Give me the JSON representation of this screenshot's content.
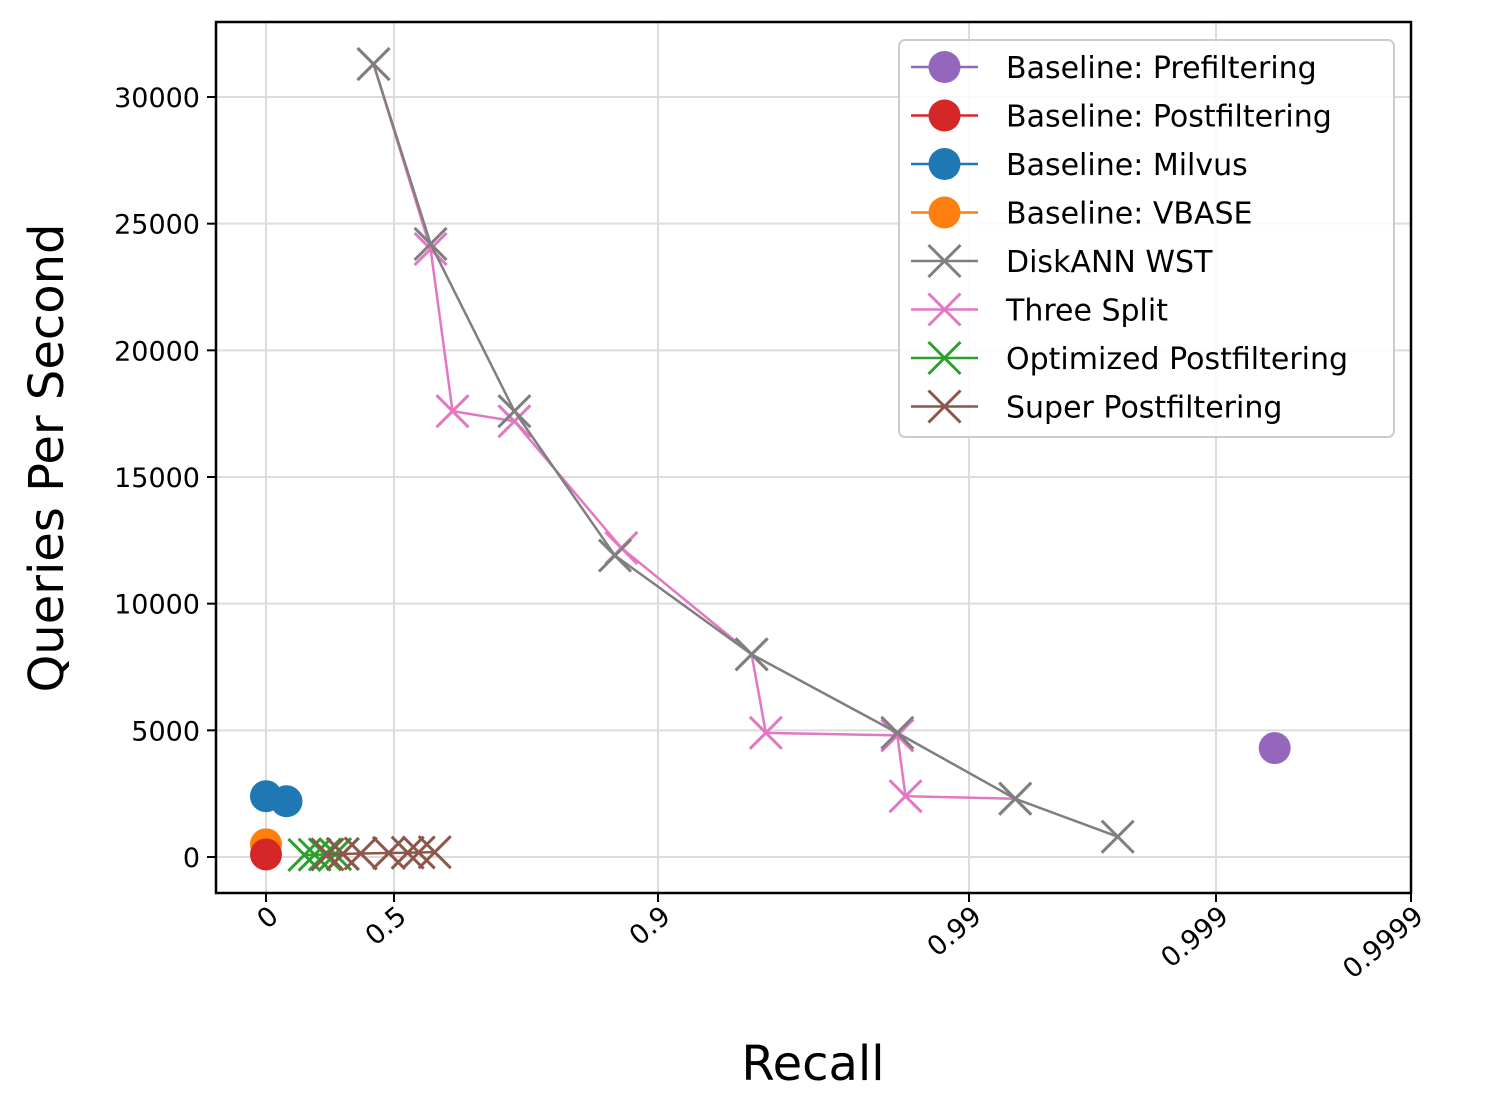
{
  "chart_data": {
    "type": "line",
    "title": "",
    "xlabel": "Recall",
    "ylabel": "Queries Per Second",
    "x_scale": "logit-style (1 - recall, log spaced)",
    "x_ticks": [
      "0",
      "0.5",
      "0.9",
      "0.99",
      "0.999",
      "0.9999"
    ],
    "y_ticks": [
      "0",
      "5000",
      "10000",
      "15000",
      "20000",
      "25000",
      "30000"
    ],
    "ylim": [
      -1500,
      33000
    ],
    "grid": true,
    "legend_position": "top-right",
    "series": [
      {
        "name": "Baseline: Prefiltering",
        "color": "#9467bd",
        "marker": "circle",
        "points": [
          {
            "x": 0.9995,
            "y": 4300
          }
        ]
      },
      {
        "name": "Baseline: Postfiltering",
        "color": "#d62728",
        "marker": "circle",
        "points": [
          {
            "x": 0.0,
            "y": 100
          }
        ]
      },
      {
        "name": "Baseline: Milvus",
        "color": "#1f77b4",
        "marker": "circle",
        "points": [
          {
            "x": 0.0,
            "y": 2400
          },
          {
            "x": 0.08,
            "y": 2200
          }
        ]
      },
      {
        "name": "Baseline: VBASE",
        "color": "#ff7f0e",
        "marker": "circle",
        "points": [
          {
            "x": 0.0,
            "y": 500
          }
        ]
      },
      {
        "name": "DiskANN WST",
        "color": "#7f7f7f",
        "marker": "x",
        "points": [
          {
            "x": 0.42,
            "y": 31300
          },
          {
            "x": 0.6,
            "y": 24200
          },
          {
            "x": 0.76,
            "y": 17600
          },
          {
            "x": 0.87,
            "y": 11900
          },
          {
            "x": 0.95,
            "y": 8000
          },
          {
            "x": 0.983,
            "y": 4900
          },
          {
            "x": 0.9935,
            "y": 2300
          },
          {
            "x": 0.9975,
            "y": 800
          }
        ]
      },
      {
        "name": "Three Split",
        "color": "#e377c2",
        "marker": "x",
        "points": [
          {
            "x": 0.42,
            "y": 31300
          },
          {
            "x": 0.6,
            "y": 24000
          },
          {
            "x": 0.65,
            "y": 17600
          },
          {
            "x": 0.76,
            "y": 17200
          },
          {
            "x": 0.875,
            "y": 12200
          },
          {
            "x": 0.95,
            "y": 8000
          },
          {
            "x": 0.955,
            "y": 4900
          },
          {
            "x": 0.983,
            "y": 4800
          },
          {
            "x": 0.984,
            "y": 2400
          },
          {
            "x": 0.9935,
            "y": 2300
          }
        ]
      },
      {
        "name": "Optimized Postfiltering",
        "color": "#2ca02c",
        "marker": "x",
        "points": [
          {
            "x": 0.15,
            "y": 80
          },
          {
            "x": 0.19,
            "y": 90
          },
          {
            "x": 0.23,
            "y": 100
          },
          {
            "x": 0.27,
            "y": 110
          },
          {
            "x": 0.3,
            "y": 120
          }
        ]
      },
      {
        "name": "Super Postfiltering",
        "color": "#8c564b",
        "marker": "x",
        "points": [
          {
            "x": 0.24,
            "y": 100
          },
          {
            "x": 0.3,
            "y": 120
          },
          {
            "x": 0.37,
            "y": 140
          },
          {
            "x": 0.48,
            "y": 160
          },
          {
            "x": 0.54,
            "y": 170
          },
          {
            "x": 0.57,
            "y": 180
          },
          {
            "x": 0.61,
            "y": 190
          }
        ]
      }
    ]
  }
}
